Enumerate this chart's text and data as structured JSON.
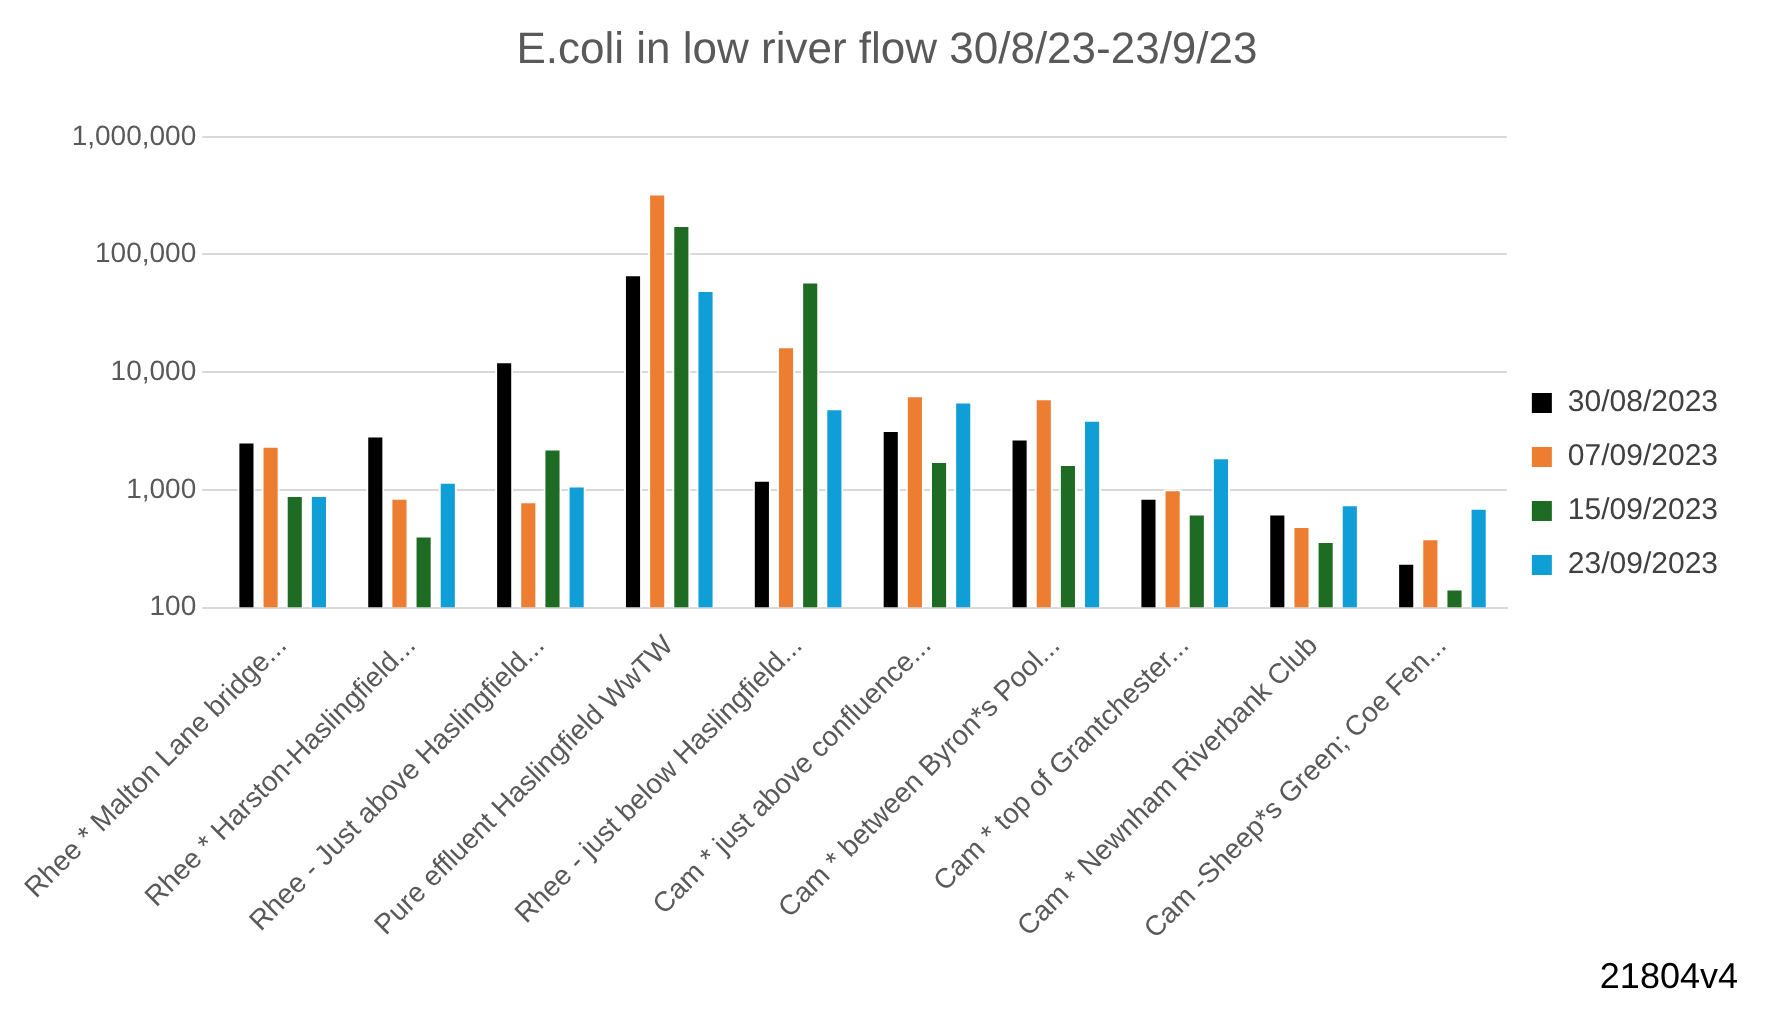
{
  "chart_data": {
    "type": "bar",
    "title": "E.coli in low river flow 30/8/23-23/9/23",
    "categories": [
      "Rhee * Malton Lane bridge...",
      "Rhee * Harston-Haslingfield...",
      "Rhee - Just above Haslingfield...",
      "Pure effluent Haslingfield WwTW",
      "Rhee - just below Haslingfield...",
      "Cam * just above confluence...",
      "Cam * between Byron*s Pool...",
      "Cam * top of Grantchester...",
      "Cam * Newnham Riverbank Club",
      "Cam -Sheep*s Green; Coe Fen..."
    ],
    "series": [
      {
        "name": "30/08/2023",
        "color": "#000000",
        "values": [
          2570,
          2890,
          12400,
          68000,
          1220,
          3230,
          2730,
          855,
          630,
          240
        ]
      },
      {
        "name": "07/09/2023",
        "color": "#ed7d31",
        "values": [
          2370,
          855,
          800,
          330000,
          16600,
          6350,
          6000,
          1010,
          493,
          388
        ]
      },
      {
        "name": "15/09/2023",
        "color": "#1e6b24",
        "values": [
          906,
          410,
          2240,
          178000,
          59000,
          1760,
          1660,
          630,
          367,
          145
        ]
      },
      {
        "name": "23/09/2023",
        "color": "#0f9ed5",
        "values": [
          906,
          1170,
          1090,
          50000,
          4930,
          5620,
          3940,
          1890,
          754,
          703
        ]
      }
    ],
    "log": true,
    "ylim": [
      100,
      1000000
    ],
    "yticks": [
      {
        "value": 100,
        "label": "100"
      },
      {
        "value": 1000,
        "label": "1,000"
      },
      {
        "value": 10000,
        "label": "10,000"
      },
      {
        "value": 100000,
        "label": "100,000"
      },
      {
        "value": 1000000,
        "label": "1,000,000"
      }
    ],
    "grid": "y",
    "legend": "right",
    "annotations": [
      "21804v4"
    ]
  }
}
